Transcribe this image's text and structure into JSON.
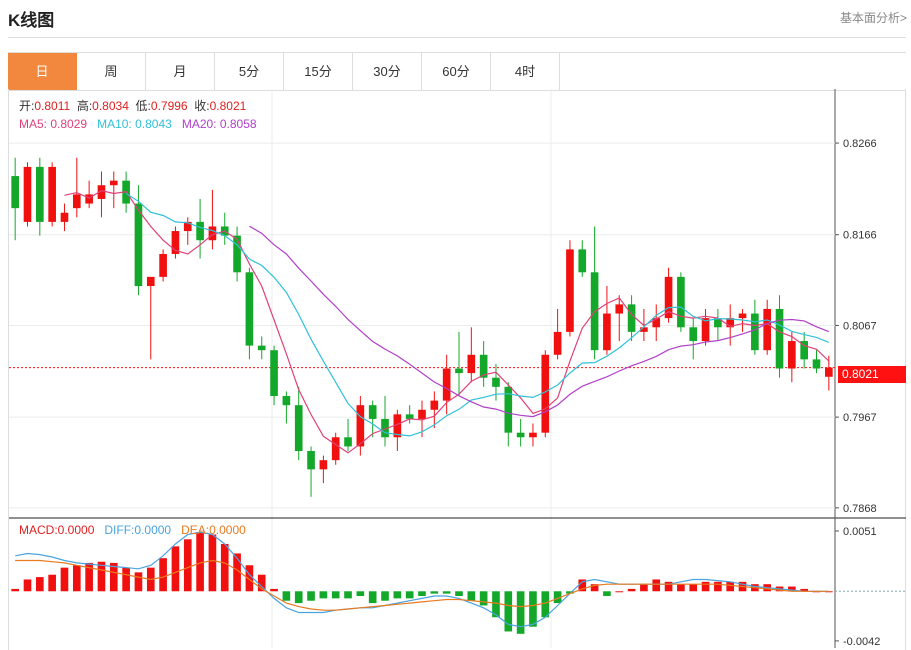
{
  "header": {
    "title": "K线图",
    "link_label": "基本面分析>"
  },
  "tabs": [
    {
      "label": "日",
      "active": true
    },
    {
      "label": "周"
    },
    {
      "label": "月"
    },
    {
      "label": "5分"
    },
    {
      "label": "15分"
    },
    {
      "label": "30分"
    },
    {
      "label": "60分"
    },
    {
      "label": "4时"
    }
  ],
  "ohlc_info": {
    "open_label": "开:",
    "open": "0.8011",
    "high_label": "高:",
    "high": "0.8034",
    "low_label": "低:",
    "low": "0.7996",
    "close_label": "收:",
    "close": "0.8021"
  },
  "ma_info": {
    "ma5_label": "MA5:",
    "ma5": "0.8029",
    "ma10_label": "MA10:",
    "ma10": "0.8043",
    "ma20_label": "MA20:",
    "ma20": "0.8058"
  },
  "macd_info": {
    "macd_label": "MACD:",
    "macd": "0.0000",
    "diff_label": "DIFF:",
    "diff": "0.0000",
    "dea_label": "DEA:",
    "dea": "0.0000"
  },
  "colors": {
    "up": "#f11010",
    "down": "#13a82a",
    "ma5": "#e0407a",
    "ma10": "#30c0d8",
    "ma20": "#b040c8",
    "diff": "#4aa3df",
    "dea": "#e87a20",
    "accent": "#f2883d"
  },
  "chart_data": {
    "type": "candlestick",
    "price_axis_ticks": [
      "0.8266",
      "0.8166",
      "0.8067",
      "0.7967",
      "0.7868"
    ],
    "price_range": [
      0.7858,
      0.8325
    ],
    "last_price_label": "0.8021",
    "last_price": 0.8021,
    "candles": [
      [
        0.823,
        0.825,
        0.816,
        0.8195
      ],
      [
        0.818,
        0.8245,
        0.8175,
        0.824
      ],
      [
        0.824,
        0.825,
        0.8165,
        0.818
      ],
      [
        0.818,
        0.8245,
        0.8175,
        0.824
      ],
      [
        0.818,
        0.82,
        0.817,
        0.819
      ],
      [
        0.8195,
        0.825,
        0.8185,
        0.821
      ],
      [
        0.82,
        0.8225,
        0.8195,
        0.821
      ],
      [
        0.8205,
        0.8235,
        0.8185,
        0.822
      ],
      [
        0.822,
        0.8235,
        0.8195,
        0.8225
      ],
      [
        0.8225,
        0.8235,
        0.819,
        0.82
      ],
      [
        0.82,
        0.822,
        0.81,
        0.811
      ],
      [
        0.811,
        0.812,
        0.803,
        0.812
      ],
      [
        0.812,
        0.815,
        0.8115,
        0.8145
      ],
      [
        0.8145,
        0.8175,
        0.814,
        0.817
      ],
      [
        0.817,
        0.8185,
        0.8155,
        0.818
      ],
      [
        0.818,
        0.8205,
        0.814,
        0.816
      ],
      [
        0.816,
        0.8215,
        0.815,
        0.8175
      ],
      [
        0.8175,
        0.819,
        0.8155,
        0.8165
      ],
      [
        0.8165,
        0.8175,
        0.8115,
        0.8125
      ],
      [
        0.8125,
        0.813,
        0.803,
        0.8045
      ],
      [
        0.8045,
        0.8055,
        0.803,
        0.804
      ],
      [
        0.804,
        0.8045,
        0.798,
        0.799
      ],
      [
        0.799,
        0.7995,
        0.796,
        0.798
      ],
      [
        0.798,
        0.8,
        0.792,
        0.793
      ],
      [
        0.793,
        0.7935,
        0.788,
        0.791
      ],
      [
        0.791,
        0.7925,
        0.7895,
        0.792
      ],
      [
        0.792,
        0.795,
        0.7915,
        0.7945
      ],
      [
        0.7945,
        0.7965,
        0.793,
        0.7935
      ],
      [
        0.7935,
        0.799,
        0.7925,
        0.798
      ],
      [
        0.798,
        0.7985,
        0.7945,
        0.7965
      ],
      [
        0.7965,
        0.799,
        0.7935,
        0.7945
      ],
      [
        0.7945,
        0.7975,
        0.793,
        0.797
      ],
      [
        0.797,
        0.798,
        0.796,
        0.7965
      ],
      [
        0.7965,
        0.7985,
        0.7945,
        0.7975
      ],
      [
        0.7975,
        0.7995,
        0.7955,
        0.7985
      ],
      [
        0.7985,
        0.8035,
        0.797,
        0.802
      ],
      [
        0.802,
        0.806,
        0.799,
        0.8015
      ],
      [
        0.8015,
        0.8065,
        0.8005,
        0.8035
      ],
      [
        0.8035,
        0.805,
        0.8,
        0.801
      ],
      [
        0.801,
        0.8025,
        0.7985,
        0.8
      ],
      [
        0.8,
        0.8005,
        0.7935,
        0.795
      ],
      [
        0.795,
        0.7965,
        0.7935,
        0.7945
      ],
      [
        0.7945,
        0.796,
        0.7935,
        0.795
      ],
      [
        0.795,
        0.804,
        0.7945,
        0.8035
      ],
      [
        0.8035,
        0.8085,
        0.803,
        0.806
      ],
      [
        0.806,
        0.816,
        0.8055,
        0.815
      ],
      [
        0.815,
        0.816,
        0.812,
        0.8125
      ],
      [
        0.8125,
        0.8175,
        0.803,
        0.804
      ],
      [
        0.804,
        0.811,
        0.8035,
        0.808
      ],
      [
        0.808,
        0.81,
        0.805,
        0.809
      ],
      [
        0.809,
        0.81,
        0.805,
        0.806
      ],
      [
        0.806,
        0.8085,
        0.805,
        0.8065
      ],
      [
        0.8065,
        0.809,
        0.805,
        0.8075
      ],
      [
        0.8075,
        0.813,
        0.807,
        0.812
      ],
      [
        0.812,
        0.8125,
        0.806,
        0.8065
      ],
      [
        0.8065,
        0.8075,
        0.803,
        0.805
      ],
      [
        0.805,
        0.8085,
        0.8045,
        0.8075
      ],
      [
        0.8075,
        0.8085,
        0.805,
        0.8065
      ],
      [
        0.8065,
        0.809,
        0.8045,
        0.8075
      ],
      [
        0.8075,
        0.8085,
        0.806,
        0.808
      ],
      [
        0.808,
        0.8095,
        0.8035,
        0.804
      ],
      [
        0.804,
        0.8095,
        0.8035,
        0.8085
      ],
      [
        0.8085,
        0.81,
        0.801,
        0.802
      ],
      [
        0.802,
        0.806,
        0.8005,
        0.805
      ],
      [
        0.805,
        0.806,
        0.802,
        0.803
      ],
      [
        0.803,
        0.804,
        0.8015,
        0.802
      ],
      [
        0.8011,
        0.8034,
        0.7996,
        0.8021
      ]
    ],
    "macd_axis_ticks": [
      "0.0051",
      "-0.0042"
    ],
    "macd_range": [
      -0.0048,
      0.0062
    ],
    "macd_hist": [
      0.0002,
      0.001,
      0.0012,
      0.0014,
      0.002,
      0.0022,
      0.0024,
      0.0025,
      0.0024,
      0.002,
      0.0016,
      0.002,
      0.0028,
      0.0038,
      0.0044,
      0.005,
      0.0048,
      0.004,
      0.0032,
      0.0022,
      0.0014,
      0.0002,
      -0.0008,
      -0.001,
      -0.0008,
      -0.0006,
      -0.0006,
      -0.0006,
      -0.0004,
      -0.001,
      -0.0008,
      -0.0006,
      -0.0006,
      -0.0004,
      -0.0002,
      -0.0002,
      -0.0004,
      -0.0008,
      -0.0012,
      -0.0022,
      -0.0034,
      -0.0036,
      -0.003,
      -0.0022,
      -0.001,
      -0.0002,
      0.001,
      0.0006,
      -0.0004,
      0.0,
      0.0002,
      0.0006,
      0.001,
      0.0008,
      0.0006,
      0.0006,
      0.0008,
      0.0008,
      0.0008,
      0.0008,
      0.0006,
      0.0006,
      0.0004,
      0.0004,
      0.0002,
      0.0,
      0.0
    ],
    "diff": [
      0.003,
      0.0032,
      0.0031,
      0.0029,
      0.0026,
      0.0024,
      0.0023,
      0.0022,
      0.0021,
      0.002,
      0.0019,
      0.0022,
      0.003,
      0.004,
      0.0048,
      0.005,
      0.0048,
      0.004,
      0.0028,
      0.0014,
      0.0004,
      -0.0006,
      -0.0014,
      -0.0018,
      -0.0018,
      -0.0018,
      -0.0016,
      -0.0015,
      -0.0014,
      -0.0014,
      -0.0012,
      -0.001,
      -0.0008,
      -0.0006,
      -0.0004,
      -0.0004,
      -0.0006,
      -0.001,
      -0.0014,
      -0.002,
      -0.0028,
      -0.003,
      -0.0028,
      -0.0022,
      -0.0012,
      -0.0002,
      0.0008,
      0.001,
      0.0008,
      0.0006,
      0.0006,
      0.0006,
      0.0006,
      0.0006,
      0.0008,
      0.001,
      0.001,
      0.0009,
      0.0008,
      0.0006,
      0.0004,
      0.0003,
      0.0002,
      0.0001,
      0.0,
      0.0,
      0.0
    ],
    "dea": [
      0.0026,
      0.0026,
      0.0026,
      0.0025,
      0.0024,
      0.0022,
      0.002,
      0.0018,
      0.0016,
      0.0014,
      0.0012,
      0.001,
      0.0012,
      0.0016,
      0.002,
      0.0024,
      0.0026,
      0.0024,
      0.0018,
      0.001,
      0.0002,
      -0.0004,
      -0.001,
      -0.0013,
      -0.0015,
      -0.0016,
      -0.0016,
      -0.0015,
      -0.0014,
      -0.0013,
      -0.0012,
      -0.0011,
      -0.001,
      -0.0009,
      -0.0008,
      -0.0007,
      -0.0007,
      -0.0008,
      -0.0009,
      -0.001,
      -0.0012,
      -0.0013,
      -0.0012,
      -0.001,
      -0.0006,
      -0.0002,
      0.0002,
      0.0005,
      0.0006,
      0.0006,
      0.0006,
      0.0006,
      0.0006,
      0.0006,
      0.0006,
      0.0006,
      0.0006,
      0.0006,
      0.0005,
      0.0004,
      0.0003,
      0.0002,
      0.0001,
      0.0,
      0.0,
      0.0,
      0.0
    ]
  }
}
